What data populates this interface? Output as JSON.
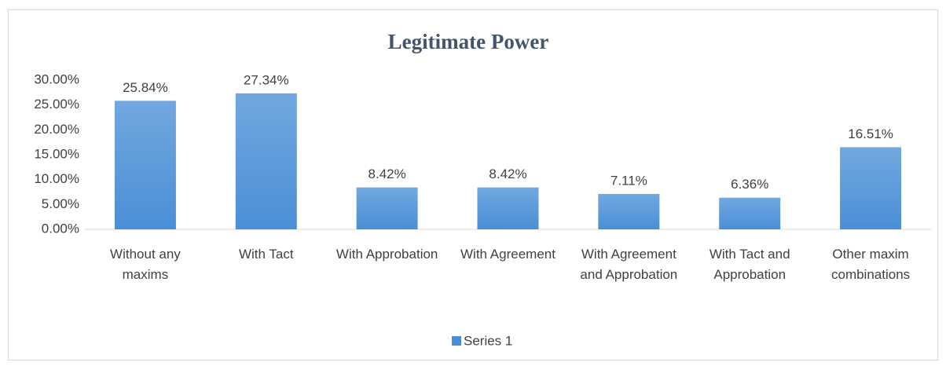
{
  "chart_data": {
    "type": "bar",
    "title": "Legitimate Power",
    "categories": [
      "Without any maxims",
      "With Tact",
      "With Approbation",
      "With Agreement",
      "With Agreement and Approbation",
      "With Tact and Approbation",
      "Other maxim combinations"
    ],
    "series": [
      {
        "name": "Series 1",
        "color": "#4a8fd6",
        "values": [
          25.84,
          27.34,
          8.42,
          8.42,
          7.11,
          6.36,
          16.51
        ],
        "value_labels": [
          "25.84%",
          "27.34%",
          "8.42%",
          "8.42%",
          "7.11%",
          "6.36%",
          "16.51%"
        ]
      }
    ],
    "ylim": [
      0,
      30
    ],
    "yticks": [
      {
        "value": 0,
        "label": "0.00%"
      },
      {
        "value": 5,
        "label": "5.00%"
      },
      {
        "value": 10,
        "label": "10.00%"
      },
      {
        "value": 15,
        "label": "15.00%"
      },
      {
        "value": 20,
        "label": "20.00%"
      },
      {
        "value": 25,
        "label": "25.00%"
      },
      {
        "value": 30,
        "label": "30.00%"
      }
    ],
    "legend": "bottom"
  }
}
